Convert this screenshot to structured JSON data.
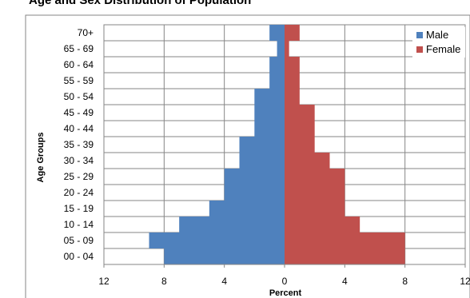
{
  "chart_data": {
    "type": "bar",
    "orientation": "horizontal",
    "layout": "population-pyramid",
    "title": "Age and Sex Distribution of Population",
    "xlabel": "Percent",
    "ylabel": "Age Groups",
    "categories": [
      "00 - 04",
      "05 - 09",
      "10 - 14",
      "15 - 19",
      "20 - 24",
      "25 - 29",
      "30 - 34",
      "35 - 39",
      "40 - 44",
      "45 - 49",
      "50 - 54",
      "55 - 59",
      "60 - 64",
      "65 - 69",
      "70+"
    ],
    "series": [
      {
        "name": "Male",
        "color": "#4f81bd",
        "direction": "left",
        "values": [
          8,
          9,
          7,
          5,
          4,
          4,
          3,
          3,
          2,
          2,
          2,
          1,
          1,
          0.5,
          1
        ]
      },
      {
        "name": "Female",
        "color": "#c0504d",
        "direction": "right",
        "values": [
          8,
          8,
          5,
          4,
          4,
          4,
          3,
          2,
          2,
          2,
          1,
          1,
          1,
          0.3,
          1
        ]
      }
    ],
    "xlim": [
      -12,
      12
    ],
    "xticks": [
      -12,
      -8,
      -4,
      0,
      4,
      8,
      12
    ],
    "xtick_labels": [
      "12",
      "8",
      "4",
      "0",
      "4",
      "8",
      "12"
    ],
    "grid": true,
    "legend_position": "top-right"
  }
}
